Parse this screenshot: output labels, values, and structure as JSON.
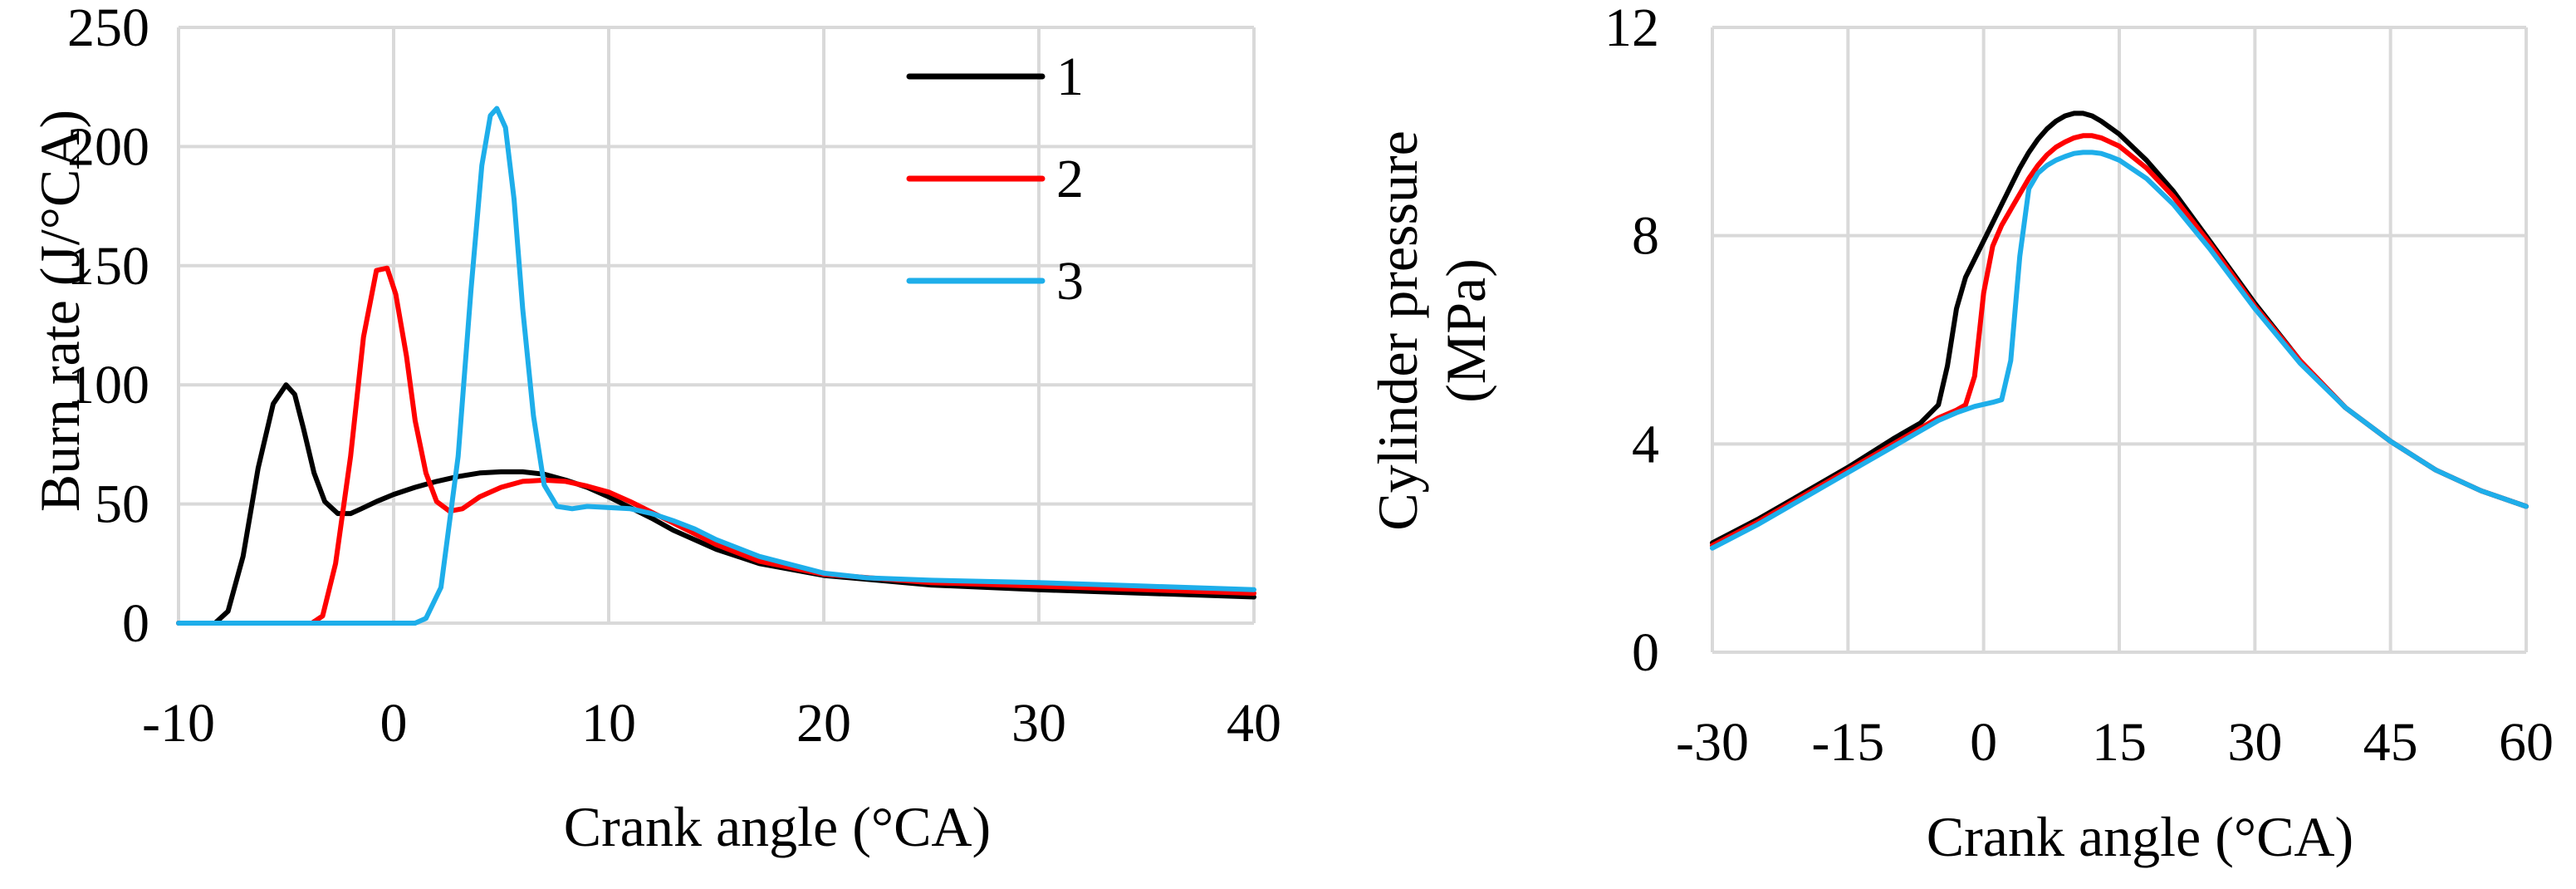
{
  "chart_data": [
    {
      "type": "line",
      "xlabel": "Crank angle (°CA)",
      "ylabel": "Burn rate (J/°CA)",
      "xlim": [
        -10,
        40
      ],
      "ylim": [
        0,
        250
      ],
      "xticks": [
        -10,
        0,
        10,
        20,
        30,
        40
      ],
      "yticks": [
        0,
        50,
        100,
        150,
        200,
        250
      ],
      "grid": true,
      "legend": "top-center",
      "series": [
        {
          "name": "1",
          "color": "#000000",
          "x": [
            -10,
            -8.3,
            -7.7,
            -7.0,
            -6.3,
            -5.6,
            -5.0,
            -4.6,
            -4.2,
            -3.7,
            -3.2,
            -2.6,
            -2.0,
            -1.5,
            -0.8,
            0,
            1,
            2,
            3,
            4,
            5,
            6,
            7,
            8,
            9,
            10,
            11,
            12,
            13,
            15,
            17,
            20,
            25,
            30,
            35,
            40
          ],
          "y": [
            0,
            0,
            5,
            28,
            65,
            92,
            100,
            96,
            82,
            63,
            51,
            46,
            46,
            48,
            51,
            54,
            57,
            59.5,
            61.5,
            63,
            63.5,
            63.5,
            62.5,
            60,
            57,
            53,
            48.5,
            44,
            39,
            31,
            25,
            20,
            16,
            14,
            12.5,
            11
          ]
        },
        {
          "name": "2",
          "color": "#ff0000",
          "x": [
            -10,
            -3.8,
            -3.3,
            -2.7,
            -2.0,
            -1.4,
            -0.8,
            -0.3,
            0.1,
            0.6,
            1.0,
            1.5,
            2.0,
            2.6,
            3.2,
            4.0,
            5.0,
            6.0,
            7.0,
            8.0,
            9.0,
            10.0,
            11.0,
            12.0,
            13.0,
            15.0,
            17.0,
            20.0,
            25.0,
            30.0,
            35.0,
            40.0
          ],
          "y": [
            0,
            0,
            3,
            25,
            70,
            120,
            148,
            149,
            138,
            112,
            85,
            63,
            51,
            47,
            48,
            53,
            57,
            59.5,
            60,
            59.5,
            57.5,
            55,
            51,
            46.5,
            42,
            33,
            26,
            20.5,
            17,
            15.5,
            14,
            12.5
          ]
        },
        {
          "name": "3",
          "color": "#1eaeea",
          "x": [
            -10,
            1.0,
            1.5,
            2.2,
            3.0,
            3.6,
            4.1,
            4.5,
            4.8,
            5.2,
            5.6,
            6.0,
            6.5,
            7.0,
            7.6,
            8.3,
            9.0,
            10.0,
            11.0,
            12.0,
            13.0,
            14.0,
            15.0,
            17.0,
            20.0,
            22.0,
            25.0,
            30.0,
            35.0,
            40.0
          ],
          "y": [
            0,
            0,
            2,
            15,
            70,
            140,
            192,
            213,
            216,
            208,
            178,
            132,
            87,
            58,
            49,
            48,
            49,
            48.5,
            48,
            46,
            43,
            39.5,
            35,
            28,
            21,
            19,
            18,
            17,
            15.5,
            14
          ]
        }
      ]
    },
    {
      "type": "line",
      "xlabel": "Crank angle (°CA)",
      "ylabel_lines": [
        "Cylinder pressure",
        "(MPa)"
      ],
      "xlim": [
        -30,
        60
      ],
      "ylim": [
        0,
        12
      ],
      "xticks": [
        -30,
        -15,
        0,
        15,
        30,
        45,
        60
      ],
      "yticks": [
        0,
        4,
        8,
        12
      ],
      "grid": true,
      "series": [
        {
          "name": "1",
          "color": "#000000",
          "x": [
            -30,
            -25,
            -20,
            -15,
            -10,
            -7,
            -5,
            -4,
            -3,
            -2,
            -1,
            0,
            1,
            2,
            3,
            4,
            5,
            6,
            7,
            8,
            9,
            10,
            11,
            12,
            13,
            15,
            18,
            21,
            25,
            30,
            35,
            40,
            45,
            50,
            55,
            60
          ],
          "y": [
            2.1,
            2.55,
            3.05,
            3.55,
            4.1,
            4.4,
            4.75,
            5.5,
            6.6,
            7.2,
            7.55,
            7.9,
            8.25,
            8.6,
            8.95,
            9.3,
            9.6,
            9.85,
            10.05,
            10.2,
            10.3,
            10.35,
            10.35,
            10.3,
            10.2,
            9.95,
            9.45,
            8.85,
            7.9,
            6.7,
            5.6,
            4.7,
            4.05,
            3.5,
            3.1,
            2.8
          ]
        },
        {
          "name": "2",
          "color": "#ff0000",
          "x": [
            -30,
            -25,
            -20,
            -15,
            -10,
            -7,
            -5,
            -3,
            -2,
            -1,
            0,
            1,
            2,
            3,
            4,
            5,
            6,
            7,
            8,
            9,
            10,
            11,
            12,
            13,
            15,
            18,
            21,
            25,
            30,
            35,
            40,
            45,
            50,
            55,
            60
          ],
          "y": [
            2.05,
            2.5,
            3.0,
            3.5,
            4.0,
            4.3,
            4.5,
            4.65,
            4.75,
            5.3,
            6.9,
            7.8,
            8.2,
            8.5,
            8.8,
            9.1,
            9.35,
            9.55,
            9.7,
            9.8,
            9.88,
            9.92,
            9.92,
            9.88,
            9.72,
            9.3,
            8.75,
            7.85,
            6.65,
            5.6,
            4.7,
            4.05,
            3.5,
            3.1,
            2.8
          ]
        },
        {
          "name": "3",
          "color": "#1eaeea",
          "x": [
            -30,
            -25,
            -20,
            -15,
            -10,
            -7,
            -5,
            -3,
            -1,
            1,
            2,
            3,
            4,
            5,
            6,
            7,
            8,
            9,
            10,
            11,
            12,
            13,
            14,
            15,
            18,
            21,
            25,
            30,
            35,
            40,
            45,
            50,
            55,
            60
          ],
          "y": [
            2.0,
            2.45,
            2.95,
            3.45,
            3.95,
            4.25,
            4.45,
            4.6,
            4.72,
            4.8,
            4.85,
            5.6,
            7.6,
            8.9,
            9.2,
            9.35,
            9.45,
            9.52,
            9.58,
            9.6,
            9.6,
            9.58,
            9.52,
            9.45,
            9.1,
            8.6,
            7.75,
            6.6,
            5.55,
            4.7,
            4.05,
            3.5,
            3.1,
            2.8
          ]
        }
      ]
    }
  ]
}
